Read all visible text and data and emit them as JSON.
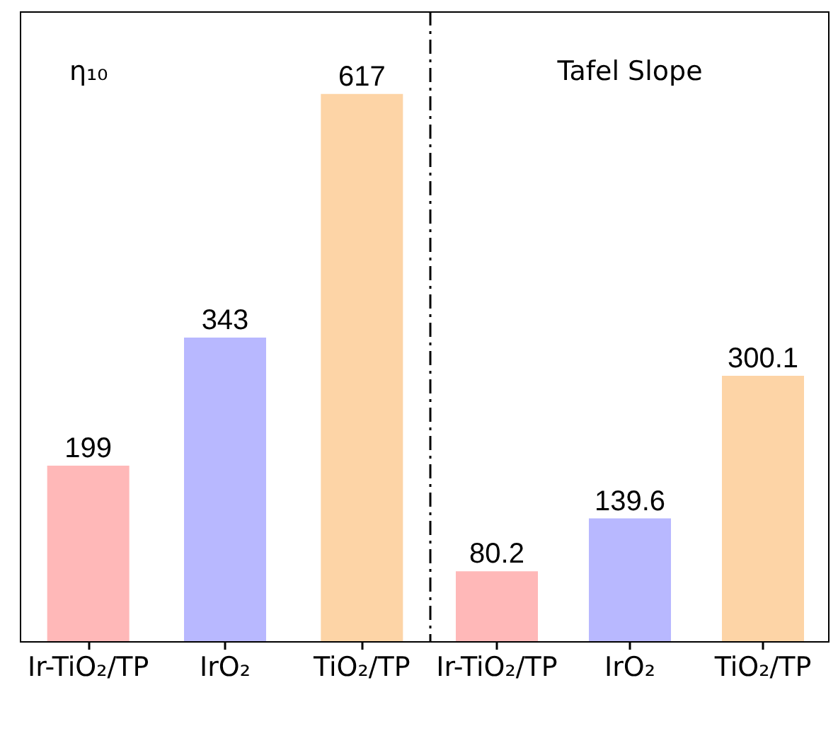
{
  "chart_data": [
    {
      "type": "bar",
      "title": "η₁₀",
      "categories": [
        "Ir-TiO₂/TP",
        "IrO₂",
        "TiO₂/TP"
      ],
      "values": [
        199,
        343,
        617
      ],
      "colors": [
        "#ffb8b8",
        "#b8b8ff",
        "#fdd4a6"
      ],
      "data_labels": true,
      "ylim": [
        0,
        710
      ],
      "tick_labels": "x"
    },
    {
      "type": "bar",
      "title": "Tafel Slope",
      "categories": [
        "Ir-TiO₂/TP",
        "IrO₂",
        "TiO₂/TP"
      ],
      "values": [
        80.2,
        139.6,
        300.1
      ],
      "colors": [
        "#ffb8b8",
        "#b8b8ff",
        "#fdd4a6"
      ],
      "data_labels": true,
      "ylim": [
        0,
        710
      ],
      "tick_labels": "x"
    }
  ]
}
